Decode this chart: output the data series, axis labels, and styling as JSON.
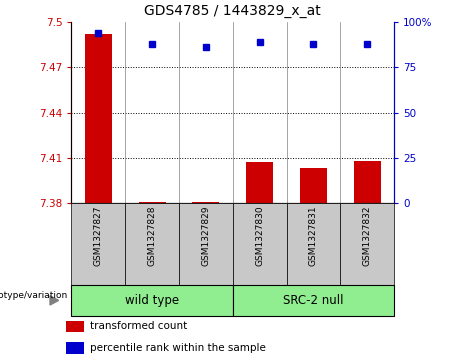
{
  "title": "GDS4785 / 1443829_x_at",
  "samples": [
    "GSM1327827",
    "GSM1327828",
    "GSM1327829",
    "GSM1327830",
    "GSM1327831",
    "GSM1327832"
  ],
  "red_values": [
    7.492,
    7.381,
    7.381,
    7.407,
    7.403,
    7.408
  ],
  "blue_values": [
    94,
    88,
    86,
    89,
    88,
    88
  ],
  "ymin": 7.38,
  "ymax": 7.5,
  "yticks": [
    7.38,
    7.41,
    7.44,
    7.47,
    7.5
  ],
  "ytick_labels": [
    "7.38",
    "7.41",
    "7.44",
    "7.47",
    "7.5"
  ],
  "y2min": 0,
  "y2max": 100,
  "y2ticks": [
    0,
    25,
    50,
    75,
    100
  ],
  "y2tick_labels": [
    "0",
    "25",
    "50",
    "75",
    "100%"
  ],
  "red_color": "#cc0000",
  "blue_color": "#0000cc",
  "bar_bottom": 7.38,
  "legend_red": "transformed count",
  "legend_blue": "percentile rank within the sample",
  "genotype_label": "genotype/variation",
  "sample_bg_color": "#c8c8c8",
  "group_bg_color": "#90ee90",
  "wild_type_label": "wild type",
  "src2_null_label": "SRC-2 null",
  "title_fontsize": 10,
  "tick_fontsize": 7.5,
  "label_fontsize": 8.5,
  "legend_fontsize": 7.5
}
